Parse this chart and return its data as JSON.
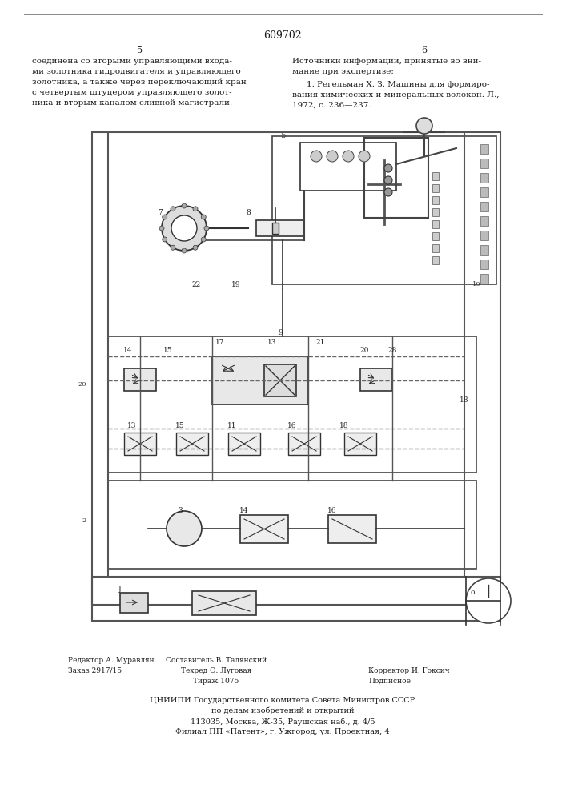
{
  "page_number": "609702",
  "col_left_number": "5",
  "col_right_number": "6",
  "left_text": [
    "соединена со вторыми управляющими входа-",
    "ми золотника гидродвигателя и управляющего",
    "золотника, а также через переключающий кран",
    "с четвертым штуцером управляющего золот-",
    "ника и вторым каналом сливной магистрали."
  ],
  "right_header": "Источники информации, принятые во вни-",
  "right_header2": "мание при экспертизе:",
  "right_ref": "1. Регельман Х. З. Машины для формиро-",
  "right_ref2": "вания химических и минеральных волокон. Л.,",
  "right_ref3": "1972, с. 236—237.",
  "left_page_line": "5",
  "bottom_left_col1": [
    "Редактор А. Муравлян",
    "Заказ 2917/15"
  ],
  "bottom_center_col": [
    "Составитель В. Талянский",
    "Техред О. Луговая",
    "Тираж 1075"
  ],
  "bottom_right_col": [
    "Корректор И. Гоксич",
    "Подписное"
  ],
  "bottom_institution": "ЦНИИПИ Государственного комитета Совета Министров СССР",
  "bottom_inst2": "по делам изобретений и открытий",
  "bottom_inst3": "113035, Москва, Ж-35, Раушская наб., д. 4/5",
  "bottom_inst4": "Филиал ПП «Патент», г. Ужгород, ул. Проектная, 4",
  "bg_color": "#ffffff",
  "text_color": "#1a1a1a",
  "border_color": "#555555",
  "diagram_border": "#333333"
}
